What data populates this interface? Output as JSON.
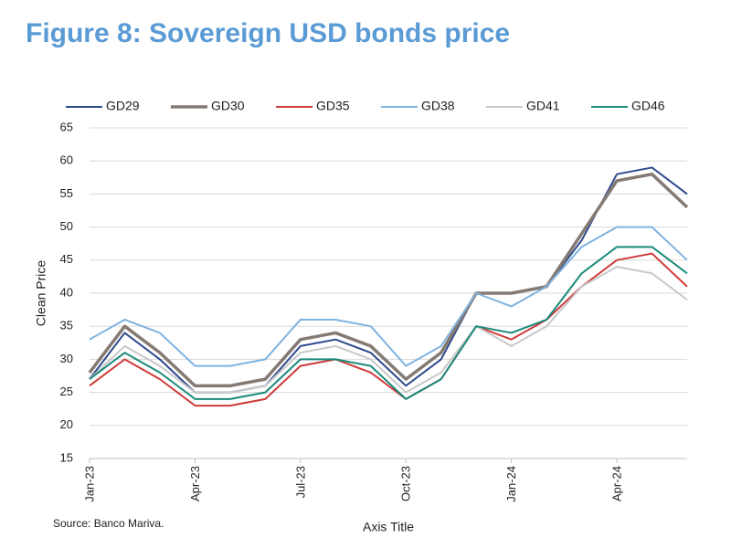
{
  "chart_data": {
    "type": "line",
    "title": "Figure 8: Sovereign USD bonds price",
    "x_label": "Axis Title",
    "y_label": "Clean Price",
    "source": "Source: Banco Mariva.",
    "x": [
      "2023-01",
      "2023-02",
      "2023-03",
      "2023-04",
      "2023-05",
      "2023-06",
      "2023-07",
      "2023-08",
      "2023-09",
      "2023-10",
      "2023-11",
      "2023-12",
      "2024-01",
      "2024-02",
      "2024-03",
      "2024-04",
      "2024-05",
      "2024-06"
    ],
    "xlim": [
      "2023-01",
      "2024-06"
    ],
    "xticks": [
      {
        "value": "2023-01",
        "label": "Jan-23"
      },
      {
        "value": "2023-04",
        "label": "Apr-23"
      },
      {
        "value": "2023-07",
        "label": "Jul-23"
      },
      {
        "value": "2023-10",
        "label": "Oct-23"
      },
      {
        "value": "2024-01",
        "label": "Jan-24"
      },
      {
        "value": "2024-04",
        "label": "Apr-24"
      }
    ],
    "ylim": [
      15,
      65
    ],
    "yticks": [
      15,
      20,
      25,
      30,
      35,
      40,
      45,
      50,
      55,
      60,
      65
    ],
    "grid": true,
    "series": [
      {
        "name": "GD29",
        "color": "#2e4a8c",
        "values": [
          27,
          34,
          30,
          25,
          25,
          26,
          32,
          33,
          31,
          26,
          30,
          40,
          40,
          41,
          48,
          58,
          59,
          55
        ]
      },
      {
        "name": "GD30",
        "color": "#857a73",
        "values": [
          28,
          35,
          31,
          26,
          26,
          27,
          33,
          34,
          32,
          27,
          31,
          40,
          40,
          41,
          49,
          57,
          58,
          53
        ]
      },
      {
        "name": "GD35",
        "color": "#d03b3b",
        "values": [
          26,
          30,
          27,
          23,
          23,
          24,
          29,
          30,
          28,
          24,
          27,
          35,
          33,
          36,
          41,
          45,
          46,
          41
        ]
      },
      {
        "name": "GD38",
        "color": "#7fb3e0",
        "values": [
          33,
          36,
          34,
          29,
          29,
          30,
          36,
          36,
          35,
          29,
          32,
          40,
          38,
          41,
          47,
          50,
          50,
          45
        ]
      },
      {
        "name": "GD41",
        "color": "#c8c8c8",
        "values": [
          27,
          32,
          29,
          25,
          25,
          26,
          31,
          32,
          30,
          25,
          28,
          35,
          32,
          35,
          41,
          44,
          43,
          39
        ]
      },
      {
        "name": "GD46",
        "color": "#1b8a7a",
        "values": [
          27,
          31,
          28,
          24,
          24,
          25,
          30,
          30,
          29,
          24,
          27,
          35,
          34,
          36,
          43,
          47,
          47,
          43
        ]
      }
    ]
  }
}
